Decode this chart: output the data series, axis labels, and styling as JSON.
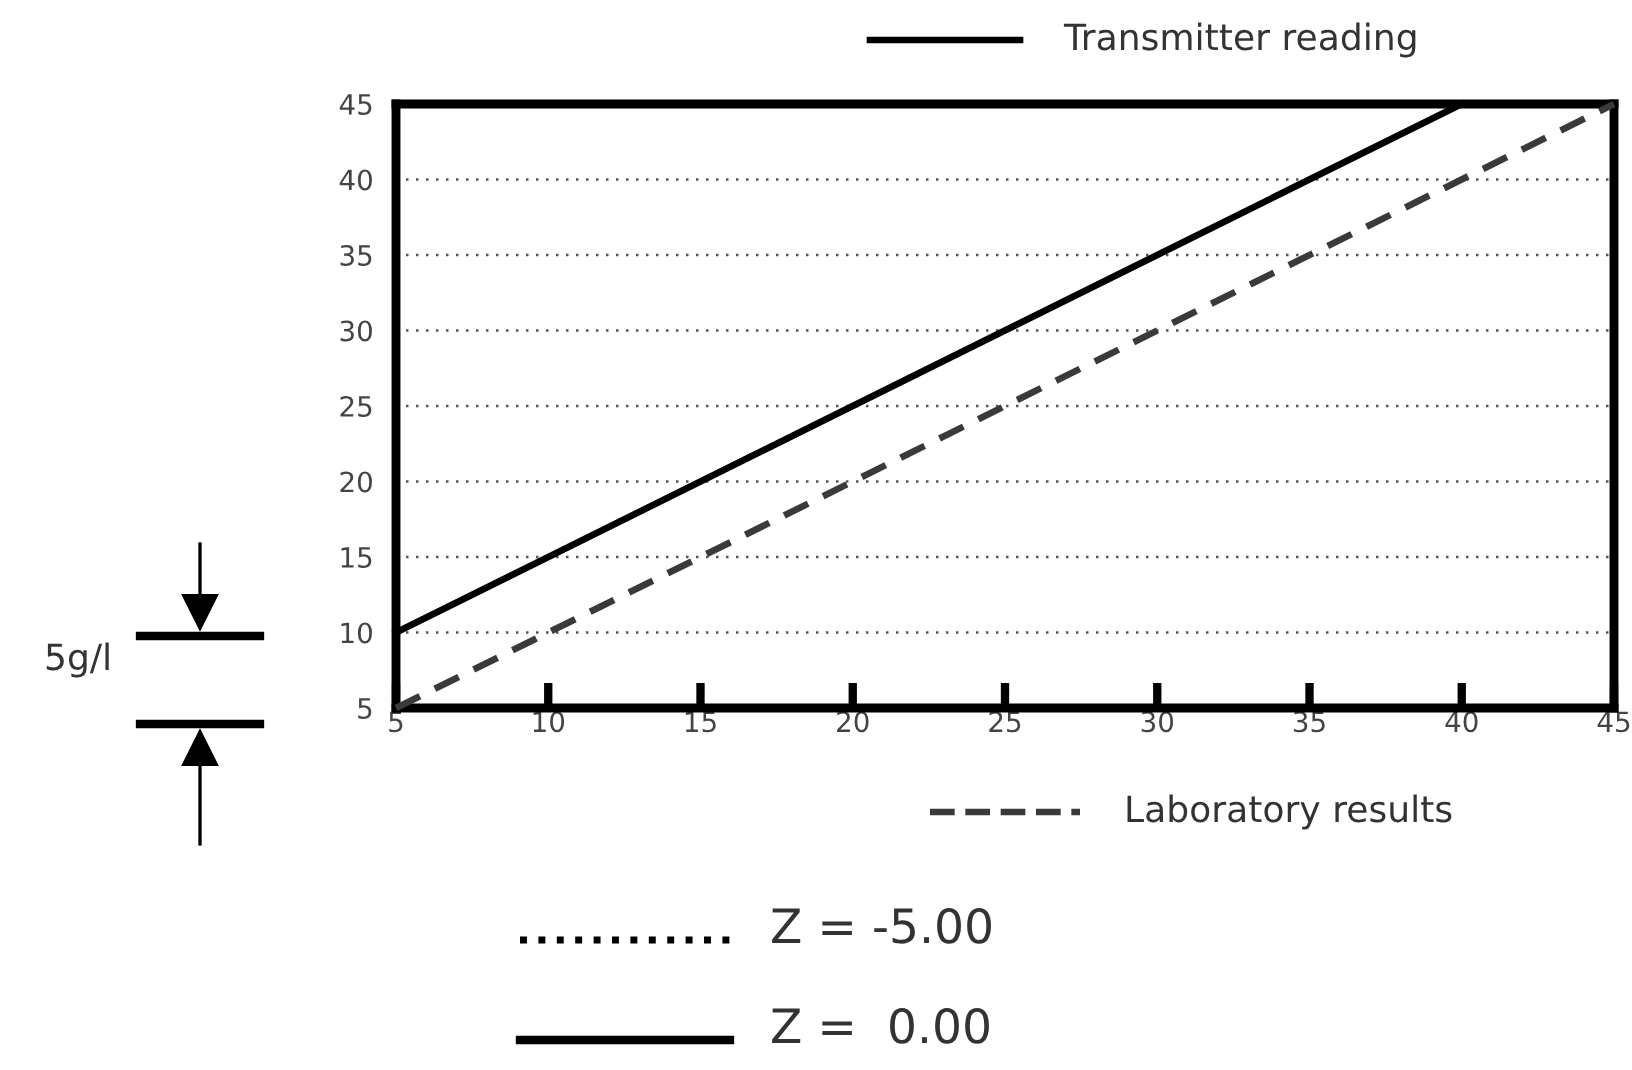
{
  "chart_data": {
    "type": "line",
    "series": [
      {
        "name": "Transmitter reading",
        "color": "#000000",
        "line_style": "solid",
        "x": [
          5,
          40
        ],
        "values": [
          10,
          45
        ]
      },
      {
        "name": "Laboratory results",
        "color": "#3a3a3a",
        "line_style": "dashed",
        "x": [
          5,
          45
        ],
        "values": [
          5,
          45
        ]
      }
    ],
    "xlim": [
      5,
      45
    ],
    "xticks": [
      5,
      10,
      15,
      20,
      25,
      30,
      35,
      40,
      45
    ],
    "ylim": [
      5,
      45
    ],
    "yticks": [
      5,
      10,
      15,
      20,
      25,
      30,
      35,
      40,
      45
    ],
    "grid": "y",
    "legend": "right",
    "annotations": [
      "5g/l",
      "Z = -5.00",
      "Z =  0.00"
    ]
  }
}
